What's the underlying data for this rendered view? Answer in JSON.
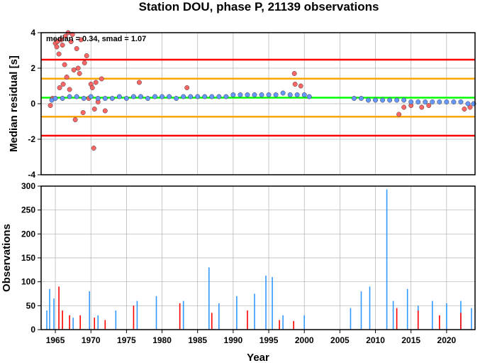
{
  "chart_data": [
    {
      "type": "scatter",
      "title": "Station DOU, phase P, 21139 observations",
      "ylabel": "Median residual [s]",
      "annotation": "median = 0.34, smad = 1.07",
      "xlim": [
        1963.0,
        2024.0
      ],
      "ylim": [
        -4,
        4
      ],
      "yticks": [
        "4",
        "2",
        "0",
        "-2",
        "-4"
      ],
      "yticks_values": [
        4,
        2,
        0,
        -2,
        -4
      ],
      "grid": true,
      "reference_lines": [
        {
          "y": 0.34,
          "color": "#00ff00"
        },
        {
          "y": 1.41,
          "color": "#ffa500"
        },
        {
          "y": -0.73,
          "color": "#ffa500"
        },
        {
          "y": 2.48,
          "color": "#ff0000"
        },
        {
          "y": -1.8,
          "color": "#ff0000"
        }
      ],
      "series": [
        {
          "color": "#ff6666",
          "x": [
            1964.3,
            1964.6,
            1965.0,
            1965.2,
            1965.3,
            1965.5,
            1965.6,
            1965.8,
            1966.0,
            1966.1,
            1966.3,
            1966.4,
            1966.6,
            1966.8,
            1967.0,
            1967.2,
            1967.4,
            1967.6,
            1967.8,
            1968.0,
            1968.2,
            1968.4,
            1968.6,
            1968.9,
            1969.1,
            1969.4,
            1969.7,
            1970.0,
            1970.2,
            1970.4,
            1970.5,
            1970.7,
            1971.0,
            1971.5,
            1972.0,
            1976.8,
            1983.5,
            1998.6,
            1998.7,
            1999.5,
            2013.3,
            2014.0,
            2015.0,
            2016.5,
            2017.5,
            2022.5,
            2023.3
          ],
          "y": [
            -0.1,
            0.3,
            3.4,
            3.2,
            3.5,
            2.8,
            0.9,
            3.6,
            3.3,
            1.1,
            2.2,
            3.8,
            1.5,
            4.0,
            0.8,
            3.5,
            3.9,
            1.9,
            -0.9,
            3.1,
            2.0,
            1.7,
            3.6,
            -0.5,
            2.3,
            2.7,
            0.3,
            1.1,
            0.9,
            -2.5,
            -0.3,
            1.2,
            0.1,
            1.4,
            -0.4,
            1.2,
            0.9,
            1.7,
            1.1,
            1.0,
            -0.6,
            -0.2,
            -0.1,
            -0.2,
            -0.1,
            -0.3,
            -0.2
          ]
        },
        {
          "color": "#6699ff",
          "note": "dense cloud of monthly medians around the baseline",
          "x": [
            1964.5,
            1965.0,
            1966.0,
            1967.0,
            1968.0,
            1969.0,
            1970.0,
            1971.0,
            1972.0,
            1973.0,
            1974.0,
            1975.0,
            1976.0,
            1977.0,
            1978.0,
            1979.0,
            1980.0,
            1981.0,
            1982.0,
            1983.0,
            1984.0,
            1985.0,
            1986.0,
            1987.0,
            1988.0,
            1989.0,
            1990.0,
            1991.0,
            1992.0,
            1993.0,
            1994.0,
            1995.0,
            1996.0,
            1997.0,
            1998.0,
            1999.0,
            2000.0,
            2000.7,
            2007.0,
            2008.0,
            2009.0,
            2010.0,
            2011.0,
            2012.0,
            2013.0,
            2014.0,
            2015.0,
            2016.0,
            2017.0,
            2018.0,
            2019.0,
            2020.0,
            2021.0,
            2022.0,
            2023.0,
            2023.8
          ],
          "y": [
            0.2,
            0.3,
            0.3,
            0.4,
            0.4,
            0.3,
            0.4,
            0.3,
            0.3,
            0.3,
            0.4,
            0.3,
            0.4,
            0.4,
            0.3,
            0.4,
            0.4,
            0.4,
            0.3,
            0.4,
            0.4,
            0.4,
            0.4,
            0.4,
            0.4,
            0.4,
            0.5,
            0.5,
            0.5,
            0.5,
            0.5,
            0.5,
            0.5,
            0.6,
            0.5,
            0.5,
            0.5,
            0.4,
            0.3,
            0.3,
            0.2,
            0.2,
            0.2,
            0.2,
            0.2,
            0.2,
            0.1,
            0.1,
            0.1,
            0.1,
            0.1,
            0.1,
            0.1,
            0.1,
            0.0,
            0.0
          ]
        }
      ]
    },
    {
      "type": "bar",
      "ylabel": "Observations",
      "xlabel": "Year",
      "xlim": [
        1963.0,
        2024.0
      ],
      "ylim": [
        0,
        300
      ],
      "yticks": [
        "300",
        "250",
        "200",
        "150",
        "100",
        "50",
        "0"
      ],
      "yticks_values": [
        300,
        250,
        200,
        150,
        100,
        50,
        0
      ],
      "xticks": [
        "1965",
        "1970",
        "1975",
        "1980",
        "1985",
        "1990",
        "1995",
        "2000",
        "2005",
        "2010",
        "2015",
        "2020"
      ],
      "xticks_values": [
        1965,
        1970,
        1975,
        1980,
        1985,
        1990,
        1995,
        2000,
        2005,
        2010,
        2015,
        2020
      ],
      "grid": true,
      "series": [
        {
          "color": "#3399ff",
          "x": [
            1963.8,
            1964.2,
            1964.8,
            1967.5,
            1969.8,
            1971.0,
            1973.5,
            1976.5,
            1979.2,
            1983.0,
            1986.6,
            1988.0,
            1990.5,
            1993.0,
            1994.6,
            1995.5,
            1997.0,
            2000.0,
            2006.5,
            2008.0,
            2009.2,
            2011.6,
            2012.5,
            2014.5,
            2016.0,
            2018.0,
            2020.0,
            2022.0,
            2023.5
          ],
          "values": [
            40,
            85,
            65,
            25,
            80,
            30,
            40,
            60,
            70,
            60,
            130,
            55,
            70,
            75,
            113,
            110,
            30,
            30,
            45,
            80,
            90,
            293,
            60,
            85,
            50,
            60,
            55,
            60,
            45
          ]
        },
        {
          "color": "#ff0000",
          "x": [
            1965.5,
            1966.0,
            1967.0,
            1968.5,
            1970.5,
            1972.0,
            1976.0,
            1982.5,
            1987.0,
            1992.0,
            1996.5,
            1998.5,
            2013.0,
            2016.0,
            2019.0,
            2022.0
          ],
          "values": [
            90,
            40,
            30,
            30,
            25,
            20,
            50,
            55,
            35,
            40,
            20,
            18,
            45,
            40,
            30,
            35
          ]
        }
      ]
    }
  ]
}
